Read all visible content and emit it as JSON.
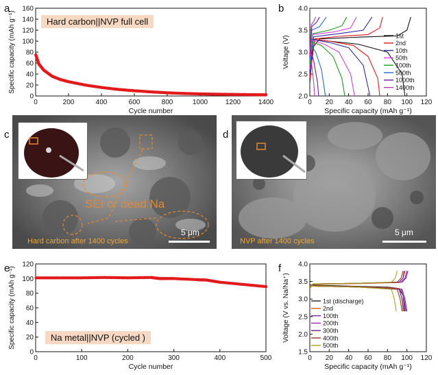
{
  "panels": {
    "a": {
      "label": "a",
      "tag": "Hard carbon||NVP full cell"
    },
    "b": {
      "label": "b"
    },
    "c": {
      "label": "c",
      "caption": "Hard carbon after 1400 cycles",
      "scale": "5 μm",
      "annotation": "SEI or dead Na"
    },
    "d": {
      "label": "d",
      "caption": "NVP after 1400 cycles",
      "scale": "5 μm"
    },
    "e": {
      "label": "e",
      "tag": "Na metal||NVP (cycled )"
    },
    "f": {
      "label": "f"
    }
  },
  "chart_data": [
    {
      "id": "a",
      "type": "scatter",
      "xlabel": "Cycle number",
      "ylabel": "Specific capacity (mAh g⁻¹)",
      "xlim": [
        0,
        1400
      ],
      "ylim": [
        0,
        160
      ],
      "xticks": [
        0,
        200,
        400,
        600,
        800,
        1000,
        1200,
        1400
      ],
      "yticks": [
        0,
        20,
        40,
        60,
        80,
        100,
        120,
        140,
        160
      ],
      "color": "#e31a1c",
      "series": [
        {
          "x": [
            1,
            20,
            50,
            100,
            150,
            200,
            300,
            400,
            500,
            600,
            700,
            800,
            900,
            1000,
            1100,
            1200,
            1300,
            1400
          ],
          "y": [
            75,
            58,
            47,
            36,
            30,
            26,
            20,
            15.5,
            12,
            9.5,
            7.5,
            5.8,
            4.6,
            3.8,
            3.2,
            2.8,
            2.4,
            2.2
          ]
        }
      ]
    },
    {
      "id": "b",
      "type": "line",
      "xlabel": "Specific capacity (mAh g⁻¹)",
      "ylabel": "Voltage (V)",
      "xlim": [
        0,
        120
      ],
      "ylim": [
        2.0,
        4.0
      ],
      "xticks": [
        0,
        20,
        40,
        60,
        80,
        100,
        120
      ],
      "yticks": [
        2.0,
        2.5,
        3.0,
        3.5,
        4.0
      ],
      "legend_position": "right",
      "series": [
        {
          "name": "1st",
          "color": "#111111",
          "charge": [
            [
              0,
              2.3
            ],
            [
              3,
              3.1
            ],
            [
              10,
              3.3
            ],
            [
              50,
              3.34
            ],
            [
              90,
              3.37
            ],
            [
              100,
              3.5
            ],
            [
              104,
              3.8
            ]
          ],
          "discharge": [
            [
              0,
              3.3
            ],
            [
              20,
              3.25
            ],
            [
              50,
              3.18
            ],
            [
              80,
              3.0
            ],
            [
              95,
              2.5
            ],
            [
              98,
              2.0
            ]
          ]
        },
        {
          "name": "2nd",
          "color": "#e31a1c",
          "charge": [
            [
              0,
              2.4
            ],
            [
              5,
              3.3
            ],
            [
              30,
              3.36
            ],
            [
              60,
              3.4
            ],
            [
              72,
              3.55
            ],
            [
              75,
              3.8
            ]
          ],
          "discharge": [
            [
              0,
              3.3
            ],
            [
              20,
              3.25
            ],
            [
              45,
              3.15
            ],
            [
              60,
              2.9
            ],
            [
              70,
              2.4
            ],
            [
              72,
              2.0
            ]
          ]
        },
        {
          "name": "10th",
          "color": "#2a2aa8",
          "charge": [
            [
              0,
              2.5
            ],
            [
              4,
              3.35
            ],
            [
              30,
              3.42
            ],
            [
              55,
              3.5
            ],
            [
              64,
              3.8
            ]
          ],
          "discharge": [
            [
              0,
              3.3
            ],
            [
              20,
              3.22
            ],
            [
              40,
              3.1
            ],
            [
              55,
              2.7
            ],
            [
              62,
              2.0
            ]
          ]
        },
        {
          "name": "50th",
          "color": "#d93fd9",
          "charge": [
            [
              0,
              2.6
            ],
            [
              3,
              3.4
            ],
            [
              25,
              3.46
            ],
            [
              42,
              3.55
            ],
            [
              48,
              3.8
            ]
          ],
          "discharge": [
            [
              0,
              3.28
            ],
            [
              15,
              3.18
            ],
            [
              30,
              3.0
            ],
            [
              42,
              2.5
            ],
            [
              46,
              2.0
            ]
          ]
        },
        {
          "name": "100th",
          "color": "#1a9e1a",
          "charge": [
            [
              0,
              2.7
            ],
            [
              3,
              3.42
            ],
            [
              20,
              3.5
            ],
            [
              33,
              3.6
            ],
            [
              38,
              3.8
            ]
          ],
          "discharge": [
            [
              0,
              3.25
            ],
            [
              12,
              3.15
            ],
            [
              24,
              2.9
            ],
            [
              33,
              2.4
            ],
            [
              36,
              2.0
            ]
          ]
        },
        {
          "name": "500th",
          "color": "#1f6bd1",
          "charge": [
            [
              0,
              2.8
            ],
            [
              2,
              3.5
            ],
            [
              10,
              3.58
            ],
            [
              17,
              3.8
            ]
          ],
          "discharge": [
            [
              0,
              3.2
            ],
            [
              6,
              3.0
            ],
            [
              12,
              2.6
            ],
            [
              16,
              2.0
            ]
          ]
        },
        {
          "name": "1000th",
          "color": "#6a1aa8",
          "charge": [
            [
              0,
              2.9
            ],
            [
              2,
              3.58
            ],
            [
              7,
              3.68
            ],
            [
              10,
              3.8
            ]
          ],
          "discharge": [
            [
              0,
              3.1
            ],
            [
              4,
              2.8
            ],
            [
              8,
              2.3
            ],
            [
              9,
              2.0
            ]
          ]
        },
        {
          "name": "1400th",
          "color": "#b43bb4",
          "charge": [
            [
              0,
              3.0
            ],
            [
              1.5,
              3.62
            ],
            [
              4,
              3.7
            ],
            [
              6,
              3.8
            ]
          ],
          "discharge": [
            [
              0,
              3.05
            ],
            [
              2,
              2.7
            ],
            [
              4,
              2.3
            ],
            [
              5,
              2.0
            ]
          ]
        }
      ]
    },
    {
      "id": "e",
      "type": "scatter",
      "xlabel": "Cycle number",
      "ylabel": "Specific capacity (mAh g⁻¹)",
      "xlim": [
        0,
        500
      ],
      "ylim": [
        0,
        120
      ],
      "xticks": [
        0,
        100,
        200,
        300,
        400,
        500
      ],
      "yticks": [
        0,
        20,
        40,
        60,
        80,
        100,
        120
      ],
      "color": "#e31a1c",
      "series": [
        {
          "x": [
            1,
            50,
            100,
            150,
            200,
            250,
            270,
            300,
            350,
            370,
            400,
            450,
            500
          ],
          "y": [
            101,
            101,
            101,
            101.5,
            101,
            101.5,
            100,
            100,
            98.5,
            98,
            95,
            92,
            89
          ]
        }
      ]
    },
    {
      "id": "f",
      "type": "line",
      "xlabel": "Specific capacity (mAh g⁻¹)",
      "ylabel": "Voltage (V vs. Na/Na⁺)",
      "xlim": [
        0,
        120
      ],
      "ylim": [
        1.5,
        4.0
      ],
      "xticks": [
        0,
        20,
        40,
        60,
        80,
        100,
        120
      ],
      "yticks": [
        1.5,
        2.0,
        2.5,
        3.0,
        3.5,
        4.0
      ],
      "legend_position": "bottom-left",
      "series": [
        {
          "name": "1st (discharge)",
          "color": "#222222",
          "charge": [],
          "discharge": [
            [
              0,
              3.4
            ],
            [
              40,
              3.37
            ],
            [
              80,
              3.34
            ],
            [
              92,
              3.3
            ],
            [
              96,
              3.1
            ],
            [
              98,
              2.65
            ]
          ]
        },
        {
          "name": "2nd",
          "color": "#e05a1a",
          "charge": [
            [
              0,
              3.3
            ],
            [
              3,
              3.42
            ],
            [
              50,
              3.44
            ],
            [
              92,
              3.47
            ],
            [
              96,
              3.6
            ],
            [
              97,
              3.8
            ]
          ],
          "discharge": [
            [
              0,
              3.38
            ],
            [
              50,
              3.35
            ],
            [
              92,
              3.3
            ],
            [
              95,
              3.0
            ],
            [
              96,
              2.65
            ]
          ]
        },
        {
          "name": "100th",
          "color": "#7b1fa2",
          "charge": [
            [
              0,
              3.3
            ],
            [
              3,
              3.43
            ],
            [
              50,
              3.45
            ],
            [
              95,
              3.48
            ],
            [
              99,
              3.6
            ],
            [
              101,
              3.8
            ]
          ],
          "discharge": [
            [
              0,
              3.37
            ],
            [
              50,
              3.34
            ],
            [
              95,
              3.28
            ],
            [
              98,
              3.0
            ],
            [
              100,
              2.65
            ]
          ]
        },
        {
          "name": "200th",
          "color": "#9c27b0",
          "charge": [
            [
              0,
              3.3
            ],
            [
              3,
              3.43
            ],
            [
              50,
              3.45
            ],
            [
              94,
              3.48
            ],
            [
              98,
              3.6
            ],
            [
              100,
              3.8
            ]
          ],
          "discharge": [
            [
              0,
              3.37
            ],
            [
              50,
              3.34
            ],
            [
              94,
              3.28
            ],
            [
              97,
              3.0
            ],
            [
              99,
              2.65
            ]
          ]
        },
        {
          "name": "300th",
          "color": "#6a1b9a",
          "charge": [
            [
              0,
              3.3
            ],
            [
              3,
              3.43
            ],
            [
              50,
              3.45
            ],
            [
              92,
              3.48
            ],
            [
              96,
              3.6
            ],
            [
              98,
              3.8
            ]
          ],
          "discharge": [
            [
              0,
              3.37
            ],
            [
              50,
              3.34
            ],
            [
              92,
              3.28
            ],
            [
              95,
              3.0
            ],
            [
              97,
              2.65
            ]
          ]
        },
        {
          "name": "400th",
          "color": "#8b3a1a",
          "charge": [
            [
              0,
              3.3
            ],
            [
              3,
              3.43
            ],
            [
              50,
              3.45
            ],
            [
              90,
              3.48
            ],
            [
              94,
              3.6
            ],
            [
              96,
              3.8
            ]
          ],
          "discharge": [
            [
              0,
              3.37
            ],
            [
              50,
              3.34
            ],
            [
              90,
              3.28
            ],
            [
              93,
              3.0
            ],
            [
              95,
              2.65
            ]
          ]
        },
        {
          "name": "500th",
          "color": "#a8a21a",
          "charge": [
            [
              0,
              3.3
            ],
            [
              3,
              3.43
            ],
            [
              50,
              3.45
            ],
            [
              84,
              3.48
            ],
            [
              88,
              3.6
            ],
            [
              90,
              3.8
            ]
          ],
          "discharge": [
            [
              0,
              3.37
            ],
            [
              50,
              3.34
            ],
            [
              84,
              3.28
            ],
            [
              87,
              3.0
            ],
            [
              89,
              2.65
            ]
          ]
        }
      ]
    }
  ]
}
